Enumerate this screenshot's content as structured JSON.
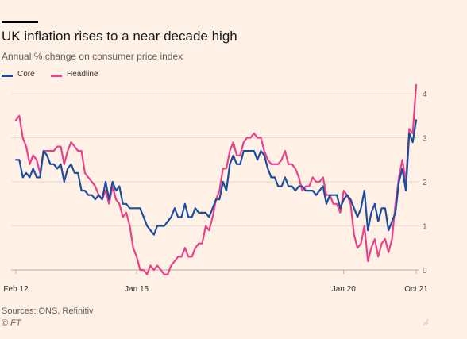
{
  "chart_data": {
    "type": "line",
    "title": "UK inflation rises to a near decade high",
    "subtitle": "Annual % change on consumer price index",
    "xlabel": "",
    "ylabel": "",
    "x_range": [
      "2012-02",
      "2021-10"
    ],
    "ylim": [
      0,
      4
    ],
    "y_ticks": [
      "0",
      "1",
      "2",
      "3",
      "4"
    ],
    "x_ticks": [
      {
        "label": "Feb 12",
        "date": "2012-02"
      },
      {
        "label": "Jan 15",
        "date": "2015-01"
      },
      {
        "label": "Jan 20",
        "date": "2020-01"
      },
      {
        "label": "Oct 21",
        "date": "2021-10"
      }
    ],
    "grid": true,
    "legend_position": "top-left",
    "series": [
      {
        "name": "Core",
        "color": "#1a4e9c",
        "points": [
          [
            "2012-02",
            2.5
          ],
          [
            "2012-03",
            2.5
          ],
          [
            "2012-04",
            2.1
          ],
          [
            "2012-05",
            2.2
          ],
          [
            "2012-06",
            2.1
          ],
          [
            "2012-07",
            2.3
          ],
          [
            "2012-08",
            2.1
          ],
          [
            "2012-09",
            2.1
          ],
          [
            "2012-10",
            2.7
          ],
          [
            "2012-11",
            2.6
          ],
          [
            "2012-12",
            2.4
          ],
          [
            "2013-01",
            2.4
          ],
          [
            "2013-02",
            2.3
          ],
          [
            "2013-03",
            2.4
          ],
          [
            "2013-04",
            2.0
          ],
          [
            "2013-05",
            2.3
          ],
          [
            "2013-06",
            2.4
          ],
          [
            "2013-07",
            2.2
          ],
          [
            "2013-08",
            2.2
          ],
          [
            "2013-09",
            1.8
          ],
          [
            "2013-10",
            1.8
          ],
          [
            "2013-11",
            1.7
          ],
          [
            "2013-12",
            1.7
          ],
          [
            "2014-01",
            1.6
          ],
          [
            "2014-02",
            1.7
          ],
          [
            "2014-03",
            1.6
          ],
          [
            "2014-04",
            2.0
          ],
          [
            "2014-05",
            1.6
          ],
          [
            "2014-06",
            2.0
          ],
          [
            "2014-07",
            1.8
          ],
          [
            "2014-08",
            1.9
          ],
          [
            "2014-09",
            1.5
          ],
          [
            "2014-10",
            1.5
          ],
          [
            "2014-11",
            1.4
          ],
          [
            "2014-12",
            1.4
          ],
          [
            "2015-01",
            1.4
          ],
          [
            "2015-02",
            1.4
          ],
          [
            "2015-03",
            1.2
          ],
          [
            "2015-04",
            1.0
          ],
          [
            "2015-05",
            0.9
          ],
          [
            "2015-06",
            0.8
          ],
          [
            "2015-07",
            1.0
          ],
          [
            "2015-08",
            1.0
          ],
          [
            "2015-09",
            1.0
          ],
          [
            "2015-10",
            1.1
          ],
          [
            "2015-11",
            1.2
          ],
          [
            "2015-12",
            1.4
          ],
          [
            "2016-01",
            1.2
          ],
          [
            "2016-02",
            1.2
          ],
          [
            "2016-03",
            1.5
          ],
          [
            "2016-04",
            1.2
          ],
          [
            "2016-05",
            1.2
          ],
          [
            "2016-06",
            1.4
          ],
          [
            "2016-07",
            1.3
          ],
          [
            "2016-08",
            1.3
          ],
          [
            "2016-09",
            1.3
          ],
          [
            "2016-10",
            1.2
          ],
          [
            "2016-11",
            1.4
          ],
          [
            "2016-12",
            1.6
          ],
          [
            "2017-01",
            1.6
          ],
          [
            "2017-02",
            2.0
          ],
          [
            "2017-03",
            1.8
          ],
          [
            "2017-04",
            2.4
          ],
          [
            "2017-05",
            2.6
          ],
          [
            "2017-06",
            2.4
          ],
          [
            "2017-07",
            2.4
          ],
          [
            "2017-08",
            2.7
          ],
          [
            "2017-09",
            2.7
          ],
          [
            "2017-10",
            2.7
          ],
          [
            "2017-11",
            2.7
          ],
          [
            "2017-12",
            2.5
          ],
          [
            "2018-01",
            2.7
          ],
          [
            "2018-02",
            2.6
          ],
          [
            "2018-03",
            2.3
          ],
          [
            "2018-04",
            2.1
          ],
          [
            "2018-05",
            2.1
          ],
          [
            "2018-06",
            1.9
          ],
          [
            "2018-07",
            1.9
          ],
          [
            "2018-08",
            2.1
          ],
          [
            "2018-09",
            1.9
          ],
          [
            "2018-10",
            1.9
          ],
          [
            "2018-11",
            1.8
          ],
          [
            "2018-12",
            1.9
          ],
          [
            "2019-01",
            1.9
          ],
          [
            "2019-02",
            1.8
          ],
          [
            "2019-03",
            1.8
          ],
          [
            "2019-04",
            1.8
          ],
          [
            "2019-05",
            1.7
          ],
          [
            "2019-06",
            1.8
          ],
          [
            "2019-07",
            1.9
          ],
          [
            "2019-08",
            1.5
          ],
          [
            "2019-09",
            1.7
          ],
          [
            "2019-10",
            1.7
          ],
          [
            "2019-11",
            1.7
          ],
          [
            "2019-12",
            1.4
          ],
          [
            "2020-01",
            1.6
          ],
          [
            "2020-02",
            1.7
          ],
          [
            "2020-03",
            1.6
          ],
          [
            "2020-04",
            1.4
          ],
          [
            "2020-05",
            1.2
          ],
          [
            "2020-06",
            1.4
          ],
          [
            "2020-07",
            1.8
          ],
          [
            "2020-08",
            0.9
          ],
          [
            "2020-09",
            1.3
          ],
          [
            "2020-10",
            1.5
          ],
          [
            "2020-11",
            1.1
          ],
          [
            "2020-12",
            1.4
          ],
          [
            "2021-01",
            1.4
          ],
          [
            "2021-02",
            0.9
          ],
          [
            "2021-03",
            1.1
          ],
          [
            "2021-04",
            1.3
          ],
          [
            "2021-05",
            2.0
          ],
          [
            "2021-06",
            2.3
          ],
          [
            "2021-07",
            1.8
          ],
          [
            "2021-08",
            3.1
          ],
          [
            "2021-09",
            2.9
          ],
          [
            "2021-10",
            3.4
          ]
        ]
      },
      {
        "name": "Headline",
        "color": "#e9428b",
        "points": [
          [
            "2012-02",
            3.4
          ],
          [
            "2012-03",
            3.5
          ],
          [
            "2012-04",
            3.0
          ],
          [
            "2012-05",
            2.8
          ],
          [
            "2012-06",
            2.4
          ],
          [
            "2012-07",
            2.6
          ],
          [
            "2012-08",
            2.5
          ],
          [
            "2012-09",
            2.2
          ],
          [
            "2012-10",
            2.7
          ],
          [
            "2012-11",
            2.7
          ],
          [
            "2012-12",
            2.7
          ],
          [
            "2013-01",
            2.7
          ],
          [
            "2013-02",
            2.8
          ],
          [
            "2013-03",
            2.8
          ],
          [
            "2013-04",
            2.4
          ],
          [
            "2013-05",
            2.7
          ],
          [
            "2013-06",
            2.9
          ],
          [
            "2013-07",
            2.8
          ],
          [
            "2013-08",
            2.7
          ],
          [
            "2013-09",
            2.7
          ],
          [
            "2013-10",
            2.2
          ],
          [
            "2013-11",
            2.1
          ],
          [
            "2013-12",
            2.0
          ],
          [
            "2014-01",
            1.9
          ],
          [
            "2014-02",
            1.7
          ],
          [
            "2014-03",
            1.6
          ],
          [
            "2014-04",
            1.8
          ],
          [
            "2014-05",
            1.5
          ],
          [
            "2014-06",
            1.9
          ],
          [
            "2014-07",
            1.6
          ],
          [
            "2014-08",
            1.5
          ],
          [
            "2014-09",
            1.2
          ],
          [
            "2014-10",
            1.3
          ],
          [
            "2014-11",
            1.0
          ],
          [
            "2014-12",
            0.5
          ],
          [
            "2015-01",
            0.3
          ],
          [
            "2015-02",
            0.0
          ],
          [
            "2015-03",
            0.0
          ],
          [
            "2015-04",
            -0.1
          ],
          [
            "2015-05",
            0.1
          ],
          [
            "2015-06",
            0.0
          ],
          [
            "2015-07",
            0.1
          ],
          [
            "2015-08",
            0.0
          ],
          [
            "2015-09",
            -0.1
          ],
          [
            "2015-10",
            -0.1
          ],
          [
            "2015-11",
            0.1
          ],
          [
            "2015-12",
            0.2
          ],
          [
            "2016-01",
            0.3
          ],
          [
            "2016-02",
            0.3
          ],
          [
            "2016-03",
            0.5
          ],
          [
            "2016-04",
            0.3
          ],
          [
            "2016-05",
            0.3
          ],
          [
            "2016-06",
            0.5
          ],
          [
            "2016-07",
            0.6
          ],
          [
            "2016-08",
            0.6
          ],
          [
            "2016-09",
            1.0
          ],
          [
            "2016-10",
            0.9
          ],
          [
            "2016-11",
            1.2
          ],
          [
            "2016-12",
            1.6
          ],
          [
            "2017-01",
            1.8
          ],
          [
            "2017-02",
            2.3
          ],
          [
            "2017-03",
            2.3
          ],
          [
            "2017-04",
            2.7
          ],
          [
            "2017-05",
            2.9
          ],
          [
            "2017-06",
            2.6
          ],
          [
            "2017-07",
            2.6
          ],
          [
            "2017-08",
            2.9
          ],
          [
            "2017-09",
            3.0
          ],
          [
            "2017-10",
            3.0
          ],
          [
            "2017-11",
            3.1
          ],
          [
            "2017-12",
            3.0
          ],
          [
            "2018-01",
            3.0
          ],
          [
            "2018-02",
            2.7
          ],
          [
            "2018-03",
            2.5
          ],
          [
            "2018-04",
            2.4
          ],
          [
            "2018-05",
            2.4
          ],
          [
            "2018-06",
            2.4
          ],
          [
            "2018-07",
            2.5
          ],
          [
            "2018-08",
            2.7
          ],
          [
            "2018-09",
            2.4
          ],
          [
            "2018-10",
            2.4
          ],
          [
            "2018-11",
            2.3
          ],
          [
            "2018-12",
            2.1
          ],
          [
            "2019-01",
            1.8
          ],
          [
            "2019-02",
            1.9
          ],
          [
            "2019-03",
            1.9
          ],
          [
            "2019-04",
            2.1
          ],
          [
            "2019-05",
            2.0
          ],
          [
            "2019-06",
            2.0
          ],
          [
            "2019-07",
            2.1
          ],
          [
            "2019-08",
            1.7
          ],
          [
            "2019-09",
            1.7
          ],
          [
            "2019-10",
            1.5
          ],
          [
            "2019-11",
            1.5
          ],
          [
            "2019-12",
            1.3
          ],
          [
            "2020-01",
            1.8
          ],
          [
            "2020-02",
            1.7
          ],
          [
            "2020-03",
            1.5
          ],
          [
            "2020-04",
            0.8
          ],
          [
            "2020-05",
            0.5
          ],
          [
            "2020-06",
            0.6
          ],
          [
            "2020-07",
            1.0
          ],
          [
            "2020-08",
            0.2
          ],
          [
            "2020-09",
            0.5
          ],
          [
            "2020-10",
            0.7
          ],
          [
            "2020-11",
            0.3
          ],
          [
            "2020-12",
            0.6
          ],
          [
            "2021-01",
            0.7
          ],
          [
            "2021-02",
            0.4
          ],
          [
            "2021-03",
            0.7
          ],
          [
            "2021-04",
            1.5
          ],
          [
            "2021-05",
            2.1
          ],
          [
            "2021-06",
            2.5
          ],
          [
            "2021-07",
            2.0
          ],
          [
            "2021-08",
            3.2
          ],
          [
            "2021-09",
            3.1
          ],
          [
            "2021-10",
            4.2
          ]
        ]
      }
    ]
  },
  "footer": {
    "sources": "Sources: ONS, Refinitiv",
    "credit": "© FT"
  },
  "colors": {
    "background": "#fff1e5",
    "grid": "#e6d9ce",
    "text_muted": "#66605c"
  }
}
